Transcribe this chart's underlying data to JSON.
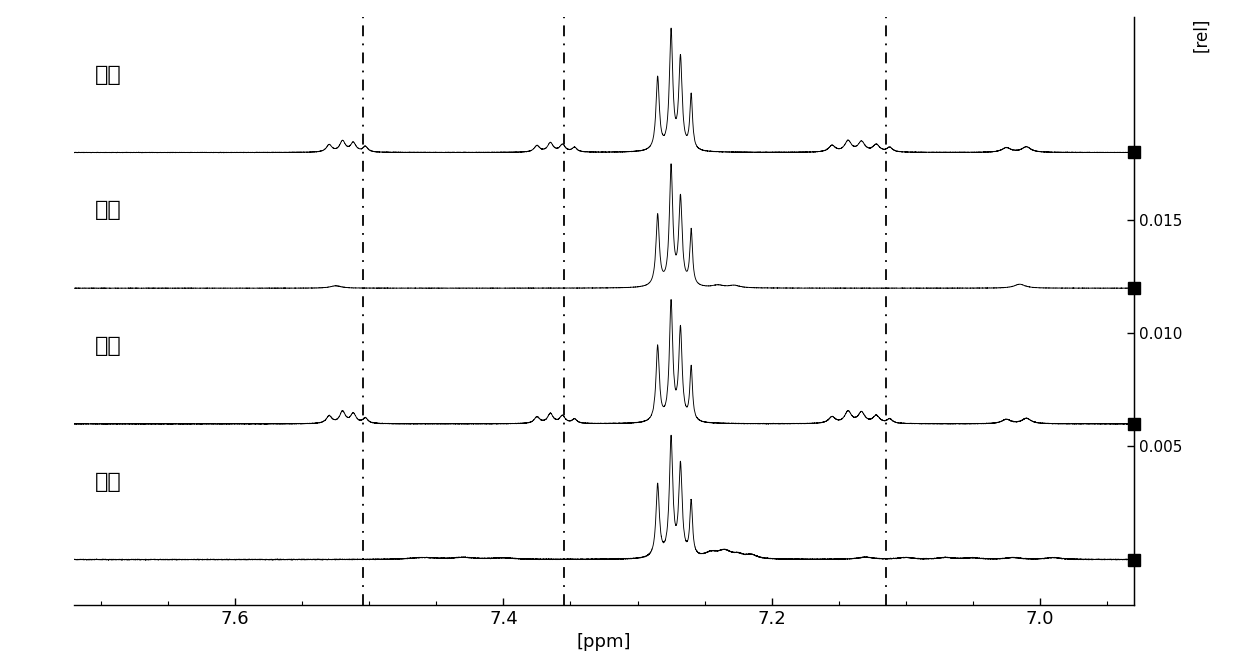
{
  "xlabel": "[ppm]",
  "ylabel": "[rel]",
  "x_min": 6.93,
  "x_max": 7.72,
  "labels": [
    "猪肉",
    "鸭肉",
    "牛肉",
    "羊肉"
  ],
  "dashed_lines": [
    7.505,
    7.355,
    7.115
  ],
  "y_ticks": [
    0.005,
    0.01,
    0.015
  ],
  "y_tick_labels": [
    "0.005",
    "0.010",
    "0.015"
  ],
  "offsets": [
    0.018,
    0.012,
    0.006,
    0.0
  ],
  "background_color": "#ffffff",
  "line_color": "#000000",
  "noise_level": 0.00012,
  "central_peak_scale": 1.0
}
